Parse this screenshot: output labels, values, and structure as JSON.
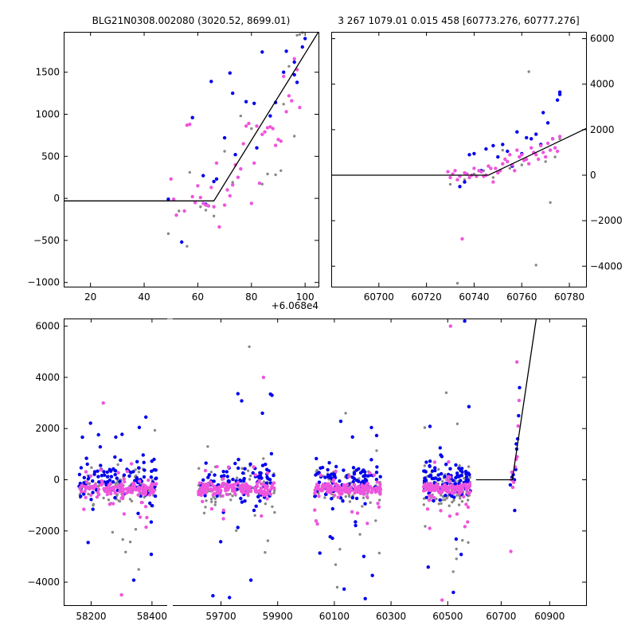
{
  "chart_data": [
    {
      "id": "top_left",
      "type": "scatter",
      "title": "BLG21N0308.002080 (3020.52, 8699.01)",
      "x_offset_label": "+6.068e4",
      "xlim": [
        10,
        105
      ],
      "ylim": [
        -1050,
        1980
      ],
      "xticks": [
        20,
        40,
        60,
        80,
        100
      ],
      "xtick_labels": [
        "20",
        "40",
        "60",
        "80",
        "100"
      ],
      "yticks": [
        -1000,
        -500,
        0,
        500,
        1000,
        1500
      ],
      "ytick_labels": [
        "−1000",
        "−500",
        "0",
        "500",
        "1000",
        "1500"
      ],
      "y_axis_side": "left",
      "model": [
        [
          10,
          -30
        ],
        [
          66,
          -30
        ],
        [
          105,
          1980
        ]
      ],
      "series": [
        {
          "name": "blue",
          "color": "#0000ee",
          "size": 2.2,
          "points": [
            [
              49,
              -10
            ],
            [
              54,
              -520
            ],
            [
              58,
              960
            ],
            [
              62,
              270
            ],
            [
              63,
              -70
            ],
            [
              65,
              1390
            ],
            [
              66,
              200
            ],
            [
              67,
              230
            ],
            [
              70,
              720
            ],
            [
              72,
              1490
            ],
            [
              73,
              1250
            ],
            [
              74,
              520
            ],
            [
              78,
              1150
            ],
            [
              81,
              1130
            ],
            [
              82,
              600
            ],
            [
              84,
              1740
            ],
            [
              87,
              980
            ],
            [
              89,
              1140
            ],
            [
              92,
              1500
            ],
            [
              93,
              1750
            ],
            [
              96,
              1620
            ],
            [
              96,
              1470
            ],
            [
              97,
              1380
            ],
            [
              99,
              1800
            ],
            [
              100,
              1900
            ]
          ]
        },
        {
          "name": "magenta",
          "color": "#ee55dd",
          "size": 2.2,
          "points": [
            [
              50,
              230
            ],
            [
              51,
              -10
            ],
            [
              52,
              -200
            ],
            [
              55,
              -150
            ],
            [
              56,
              870
            ],
            [
              57,
              880
            ],
            [
              58,
              20
            ],
            [
              59,
              -50
            ],
            [
              60,
              150
            ],
            [
              61,
              10
            ],
            [
              62,
              -60
            ],
            [
              63,
              -80
            ],
            [
              64,
              -90
            ],
            [
              65,
              130
            ],
            [
              66,
              -100
            ],
            [
              67,
              420
            ],
            [
              68,
              -340
            ],
            [
              70,
              -80
            ],
            [
              71,
              100
            ],
            [
              72,
              30
            ],
            [
              73,
              160
            ],
            [
              74,
              400
            ],
            [
              75,
              250
            ],
            [
              76,
              350
            ],
            [
              77,
              650
            ],
            [
              78,
              860
            ],
            [
              79,
              890
            ],
            [
              80,
              -60
            ],
            [
              81,
              420
            ],
            [
              82,
              860
            ],
            [
              83,
              180
            ],
            [
              84,
              760
            ],
            [
              85,
              790
            ],
            [
              86,
              840
            ],
            [
              87,
              850
            ],
            [
              88,
              830
            ],
            [
              89,
              630
            ],
            [
              90,
              700
            ],
            [
              91,
              680
            ],
            [
              92,
              1450
            ],
            [
              93,
              1030
            ],
            [
              94,
              1220
            ],
            [
              95,
              1160
            ],
            [
              96,
              1660
            ],
            [
              97,
              1530
            ],
            [
              98,
              1080
            ]
          ]
        },
        {
          "name": "gray",
          "color": "#888888",
          "size": 1.7,
          "points": [
            [
              49,
              -420
            ],
            [
              53,
              -150
            ],
            [
              56,
              -570
            ],
            [
              57,
              310
            ],
            [
              61,
              -100
            ],
            [
              63,
              -140
            ],
            [
              66,
              -210
            ],
            [
              70,
              560
            ],
            [
              73,
              190
            ],
            [
              76,
              980
            ],
            [
              80,
              830
            ],
            [
              84,
              170
            ],
            [
              86,
              290
            ],
            [
              89,
              280
            ],
            [
              91,
              330
            ],
            [
              92,
              1120
            ],
            [
              94,
              1570
            ],
            [
              96,
              740
            ],
            [
              97,
              1940
            ],
            [
              98,
              1950
            ],
            [
              99,
              1970
            ]
          ]
        }
      ]
    },
    {
      "id": "top_right",
      "type": "scatter",
      "title": "3 267 1079.01 0.015 458 [60773.276, 60777.276]",
      "xlim": [
        60680,
        60787
      ],
      "ylim": [
        -4900,
        6300
      ],
      "xticks": [
        60700,
        60720,
        60740,
        60760,
        60780
      ],
      "xtick_labels": [
        "60700",
        "60720",
        "60740",
        "60760",
        "60780"
      ],
      "yticks": [
        -4000,
        -2000,
        0,
        2000,
        4000,
        6000
      ],
      "ytick_labels": [
        "−4000",
        "−2000",
        "0",
        "2000",
        "4000",
        "6000"
      ],
      "y_axis_side": "right",
      "model": [
        [
          60680,
          0
        ],
        [
          60746,
          0
        ],
        [
          60787,
          2050
        ]
      ],
      "series": [
        {
          "name": "blue",
          "color": "#0000ee",
          "size": 2.2,
          "points": [
            [
              60734,
              -500
            ],
            [
              60736,
              -300
            ],
            [
              60738,
              900
            ],
            [
              60740,
              950
            ],
            [
              60743,
              200
            ],
            [
              60745,
              1150
            ],
            [
              60748,
              1300
            ],
            [
              60750,
              800
            ],
            [
              60752,
              1350
            ],
            [
              60754,
              1050
            ],
            [
              60756,
              400
            ],
            [
              60758,
              1900
            ],
            [
              60760,
              950
            ],
            [
              60762,
              1650
            ],
            [
              60764,
              1600
            ],
            [
              60766,
              1800
            ],
            [
              60768,
              1350
            ],
            [
              60769,
              2750
            ],
            [
              60771,
              2300
            ],
            [
              60773,
              1600
            ],
            [
              60775,
              3300
            ],
            [
              60776,
              3650
            ],
            [
              60776,
              3550
            ]
          ]
        },
        {
          "name": "magenta",
          "color": "#ee55dd",
          "size": 2.2,
          "points": [
            [
              60729,
              150
            ],
            [
              60730,
              -100
            ],
            [
              60731,
              50
            ],
            [
              60732,
              200
            ],
            [
              60733,
              -200
            ],
            [
              60734,
              -50
            ],
            [
              60735,
              -2800
            ],
            [
              60736,
              100
            ],
            [
              60737,
              50
            ],
            [
              60738,
              -100
            ],
            [
              60739,
              0
            ],
            [
              60740,
              300
            ],
            [
              60741,
              -50
            ],
            [
              60742,
              200
            ],
            [
              60743,
              150
            ],
            [
              60744,
              -50
            ],
            [
              60745,
              0
            ],
            [
              60746,
              400
            ],
            [
              60747,
              300
            ],
            [
              60748,
              -300
            ],
            [
              60749,
              300
            ],
            [
              60750,
              100
            ],
            [
              60751,
              200
            ],
            [
              60752,
              500
            ],
            [
              60753,
              700
            ],
            [
              60754,
              600
            ],
            [
              60755,
              900
            ],
            [
              60756,
              450
            ],
            [
              60757,
              200
            ],
            [
              60758,
              1100
            ],
            [
              60759,
              800
            ],
            [
              60760,
              900
            ],
            [
              60761,
              650
            ],
            [
              60762,
              700
            ],
            [
              60763,
              500
            ],
            [
              60764,
              1200
            ],
            [
              60765,
              1000
            ],
            [
              60766,
              900
            ],
            [
              60767,
              700
            ],
            [
              60768,
              1300
            ],
            [
              60769,
              1000
            ],
            [
              60770,
              800
            ],
            [
              60771,
              1400
            ],
            [
              60772,
              1100
            ],
            [
              60773,
              1600
            ],
            [
              60774,
              1200
            ],
            [
              60775,
              1050
            ],
            [
              60776,
              1700
            ]
          ]
        },
        {
          "name": "gray",
          "color": "#888888",
          "size": 1.7,
          "points": [
            [
              60730,
              -400
            ],
            [
              60733,
              -4750
            ],
            [
              60736,
              -200
            ],
            [
              60740,
              50
            ],
            [
              60744,
              200
            ],
            [
              60748,
              -100
            ],
            [
              60752,
              1100
            ],
            [
              60755,
              300
            ],
            [
              60760,
              450
            ],
            [
              60763,
              4550
            ],
            [
              60766,
              -3950
            ],
            [
              60770,
              600
            ],
            [
              60772,
              -1200
            ],
            [
              60774,
              800
            ],
            [
              60776,
              1600
            ]
          ]
        }
      ]
    },
    {
      "id": "bottom",
      "type": "scatter",
      "title": "",
      "segments": [
        {
          "xlim": [
            58110,
            58450
          ],
          "xticks": [
            58200,
            58400
          ],
          "xtick_labels": [
            "58200",
            "58400"
          ]
        },
        {
          "xlim": [
            59530,
            60620
          ],
          "xticks": [
            59700,
            59900,
            60100,
            60300,
            60500
          ],
          "xtick_labels": [
            "59700",
            "59900",
            "60100",
            "60300",
            "60500"
          ]
        },
        {
          "xlim": [
            60620,
            61050
          ],
          "xticks": [
            60700,
            60900
          ],
          "xtick_labels": [
            "60700",
            "60900"
          ]
        }
      ],
      "ylim": [
        -4900,
        6300
      ],
      "yticks": [
        -4000,
        -2000,
        0,
        2000,
        4000,
        6000
      ],
      "ytick_labels": [
        "−4000",
        "−2000",
        "0",
        "2000",
        "4000",
        "6000"
      ],
      "y_axis_side": "left",
      "model": [
        [
          60600,
          0
        ],
        [
          60746,
          0
        ],
        [
          60845,
          6300
        ]
      ],
      "clusters": [
        {
          "x": [
            58160,
            58415
          ],
          "count": 360,
          "spread": 480,
          "outlier_rate": 0.12,
          "outlier_amp": 2800
        },
        {
          "x": [
            59620,
            59890
          ],
          "count": 360,
          "spread": 500,
          "outlier_rate": 0.13,
          "outlier_amp": 3000
        },
        {
          "x": [
            60030,
            60265
          ],
          "count": 340,
          "spread": 480,
          "outlier_rate": 0.12,
          "outlier_amp": 2600
        },
        {
          "x": [
            60415,
            60580
          ],
          "count": 340,
          "spread": 500,
          "outlier_rate": 0.14,
          "outlier_amp": 3000
        }
      ],
      "outliers": [
        [
          58240,
          3000
        ],
        [
          58380,
          2450
        ],
        [
          59800,
          5200
        ],
        [
          59850,
          4000
        ],
        [
          59880,
          3300
        ],
        [
          60140,
          2600
        ],
        [
          60510,
          6000
        ],
        [
          60560,
          6200
        ],
        [
          60495,
          3400
        ],
        [
          58300,
          -4500
        ],
        [
          59730,
          -4600
        ],
        [
          60110,
          -4200
        ],
        [
          60480,
          -4700
        ],
        [
          60520,
          -4400
        ]
      ],
      "rise_points": [
        [
          60738,
          -200
        ],
        [
          60742,
          0
        ],
        [
          60745,
          100
        ],
        [
          60748,
          -300
        ],
        [
          60750,
          200
        ],
        [
          60752,
          -100
        ],
        [
          60755,
          0
        ],
        [
          60758,
          500
        ],
        [
          60760,
          400
        ],
        [
          60762,
          800
        ],
        [
          60764,
          1200
        ],
        [
          60766,
          900
        ],
        [
          60768,
          1600
        ],
        [
          60770,
          2100
        ],
        [
          60772,
          2500
        ],
        [
          60774,
          3100
        ],
        [
          60776,
          3600
        ],
        [
          60740,
          -2800
        ],
        [
          60756,
          -1200
        ],
        [
          60744,
          300
        ],
        [
          60762,
          1400
        ],
        [
          60765,
          4600
        ]
      ]
    }
  ]
}
